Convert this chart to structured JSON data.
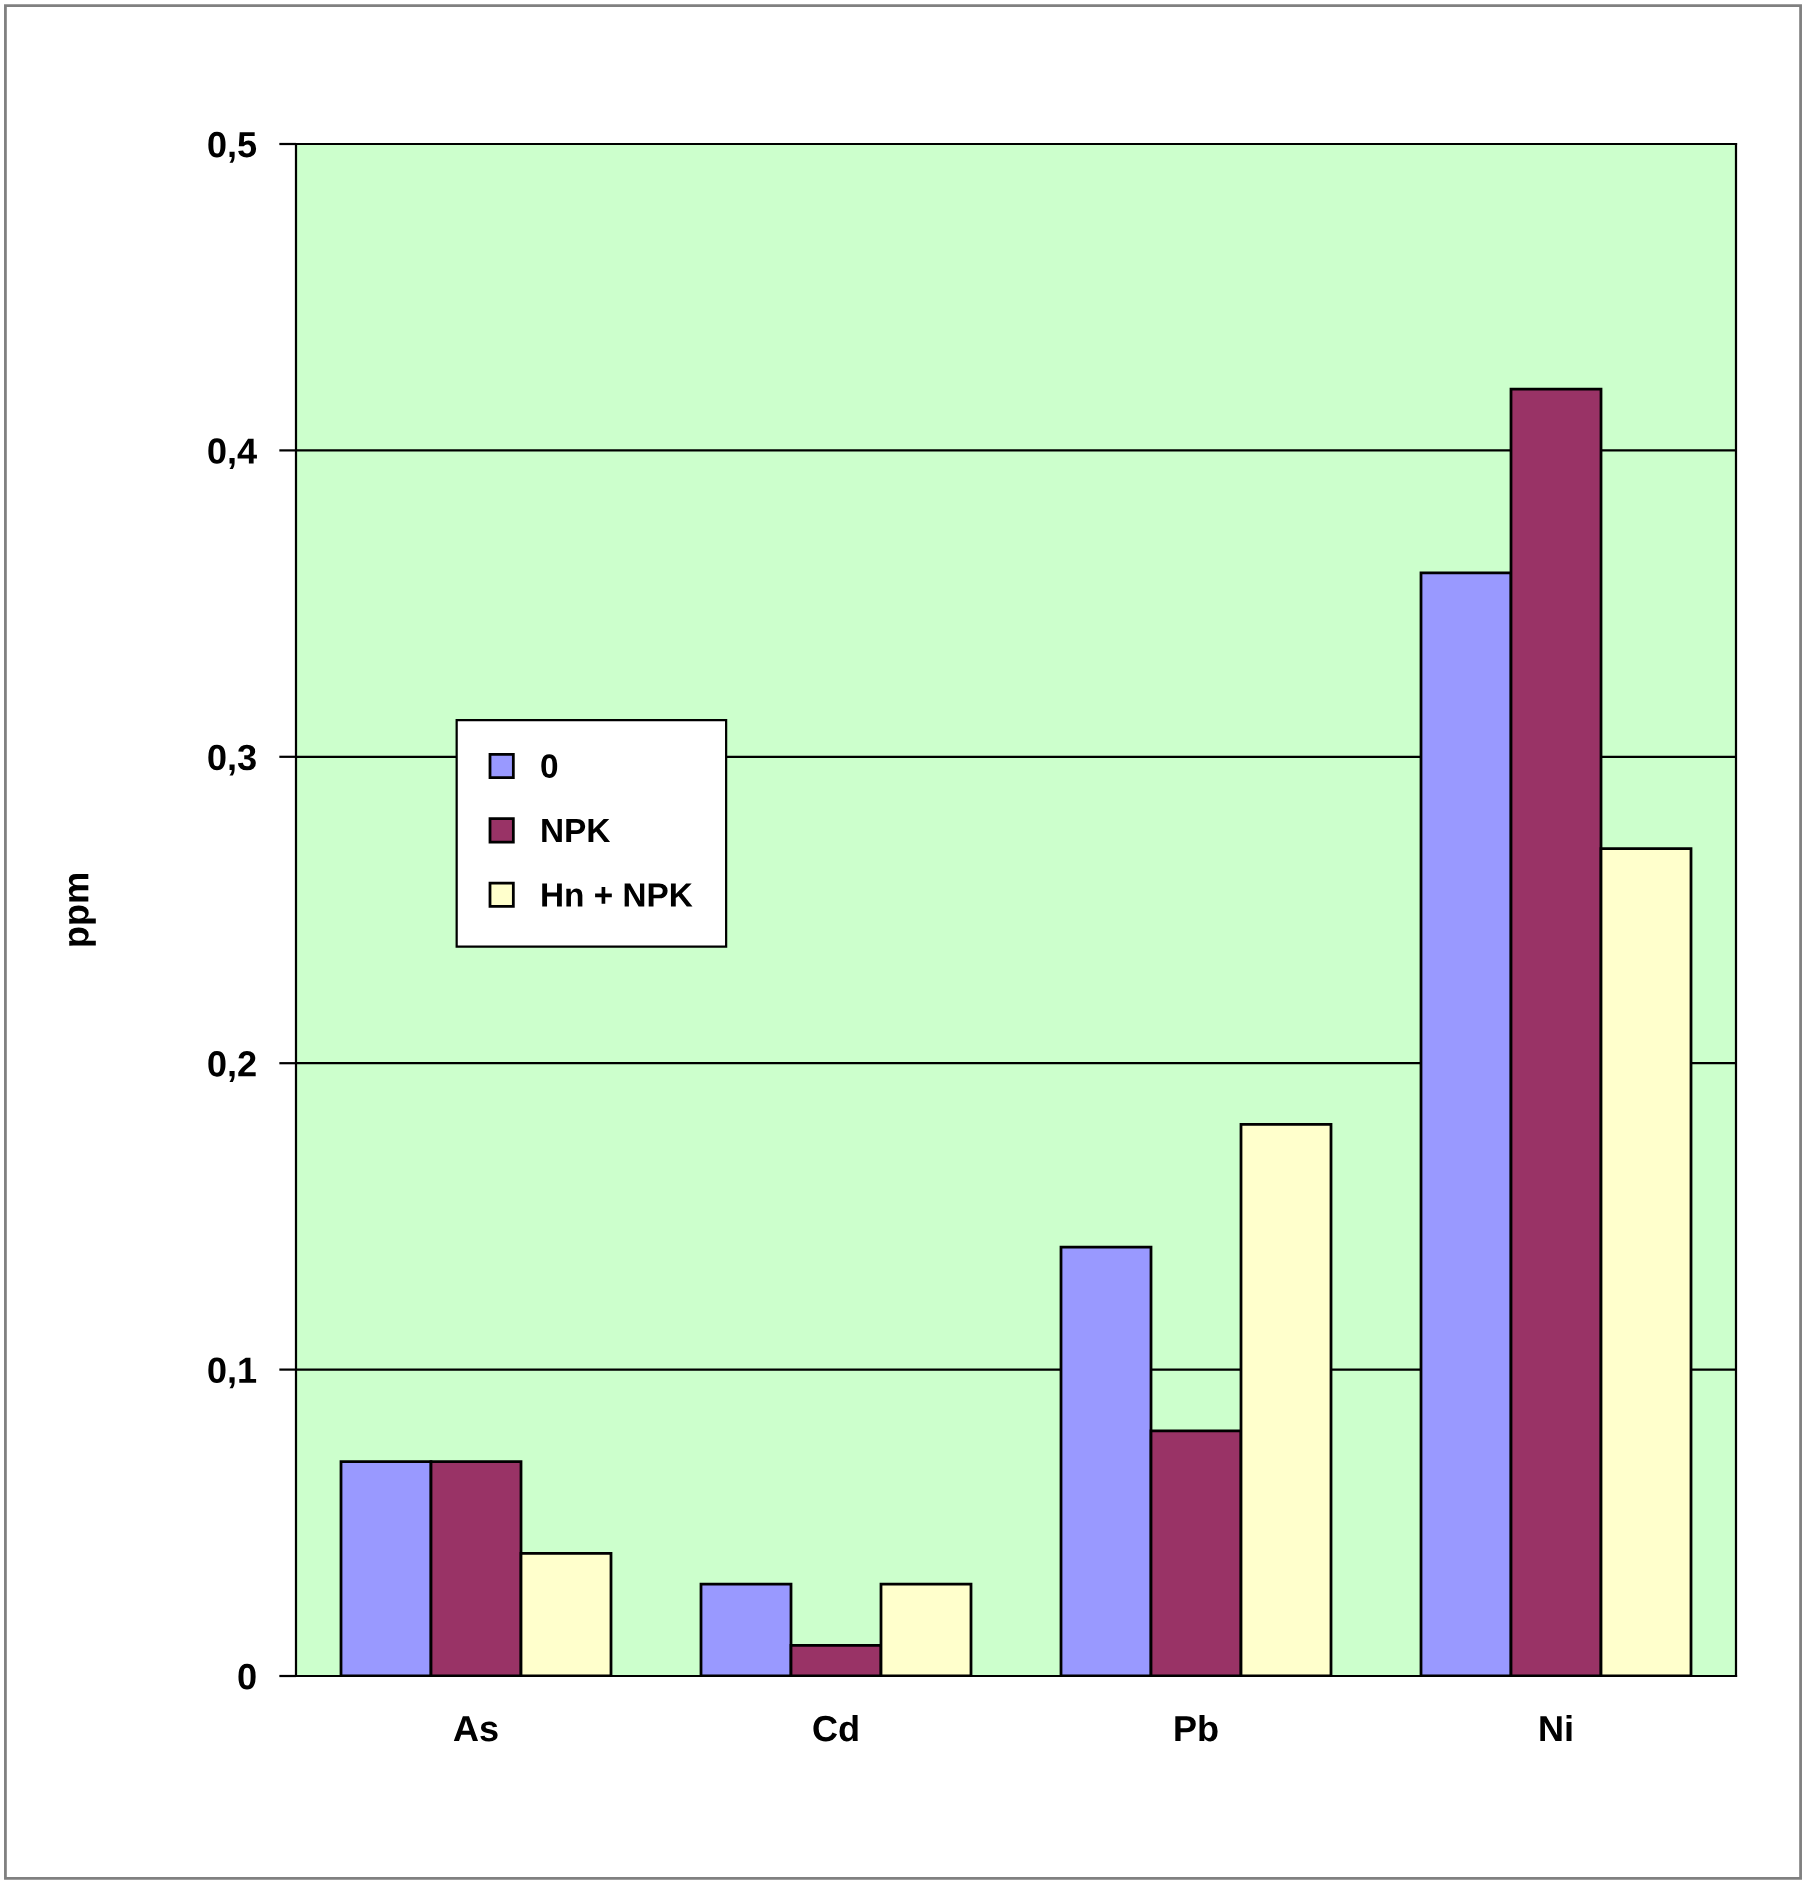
{
  "chart_data": {
    "type": "bar",
    "ylabel": "ppm",
    "categories": [
      "As",
      "Cd",
      "Pb",
      "Ni"
    ],
    "series": [
      {
        "name": "0",
        "color": "#9999ff",
        "values": [
          0.07,
          0.03,
          0.14,
          0.36
        ]
      },
      {
        "name": "NPK",
        "color": "#993366",
        "values": [
          0.07,
          0.01,
          0.08,
          0.42
        ]
      },
      {
        "name": "Hn + NPK",
        "color": "#ffffcc",
        "values": [
          0.04,
          0.03,
          0.18,
          0.27
        ]
      }
    ],
    "ylim": [
      0,
      0.5
    ],
    "yticks": [
      {
        "value": 0,
        "label": "0"
      },
      {
        "value": 0.1,
        "label": "0,1"
      },
      {
        "value": 0.2,
        "label": "0,2"
      },
      {
        "value": 0.3,
        "label": "0,3"
      },
      {
        "value": 0.4,
        "label": "0,4"
      },
      {
        "value": 0.5,
        "label": "0,5"
      }
    ],
    "grid": "y",
    "legend": "left"
  }
}
